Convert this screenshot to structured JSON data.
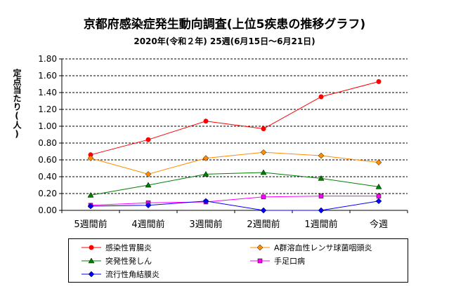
{
  "chart_data": {
    "type": "line",
    "title": "京都府感染症発生動向調査(上位5疾患の推移グラフ)",
    "subtitle": "2020年(令和２年) 25週(6月15日～6月21日)",
    "ylabel": "定点当たり(人)",
    "xlabel": "",
    "categories": [
      "5週間前",
      "4週間前",
      "3週間前",
      "2週間前",
      "1週間前",
      "今週"
    ],
    "ylim": [
      0,
      1.8
    ],
    "yticks": [
      "0.00",
      "0.20",
      "0.40",
      "0.60",
      "0.80",
      "1.00",
      "1.20",
      "1.40",
      "1.60",
      "1.80"
    ],
    "grid": "horizontal-dashed",
    "legend_position": "bottom",
    "series": [
      {
        "name": "感染性胃腸炎",
        "color": "#ff0000",
        "marker": "circle",
        "values": [
          0.66,
          0.84,
          1.06,
          0.97,
          1.35,
          1.53
        ]
      },
      {
        "name": "A群溶血性レンサ球菌咽頭炎",
        "color": "#ff8c00",
        "marker": "diamond",
        "values": [
          0.62,
          0.43,
          0.62,
          0.69,
          0.65,
          0.57
        ]
      },
      {
        "name": "突発性発しん",
        "color": "#008000",
        "marker": "triangle",
        "values": [
          0.18,
          0.3,
          0.43,
          0.45,
          0.38,
          0.28
        ]
      },
      {
        "name": "手足口病",
        "color": "#ff00ff",
        "marker": "square",
        "values": [
          0.06,
          0.09,
          0.1,
          0.16,
          0.17,
          0.17
        ]
      },
      {
        "name": "流行性角結膜炎",
        "color": "#0000ff",
        "marker": "diamond",
        "values": [
          0.05,
          0.06,
          0.11,
          0.0,
          0.0,
          0.11
        ]
      }
    ]
  }
}
